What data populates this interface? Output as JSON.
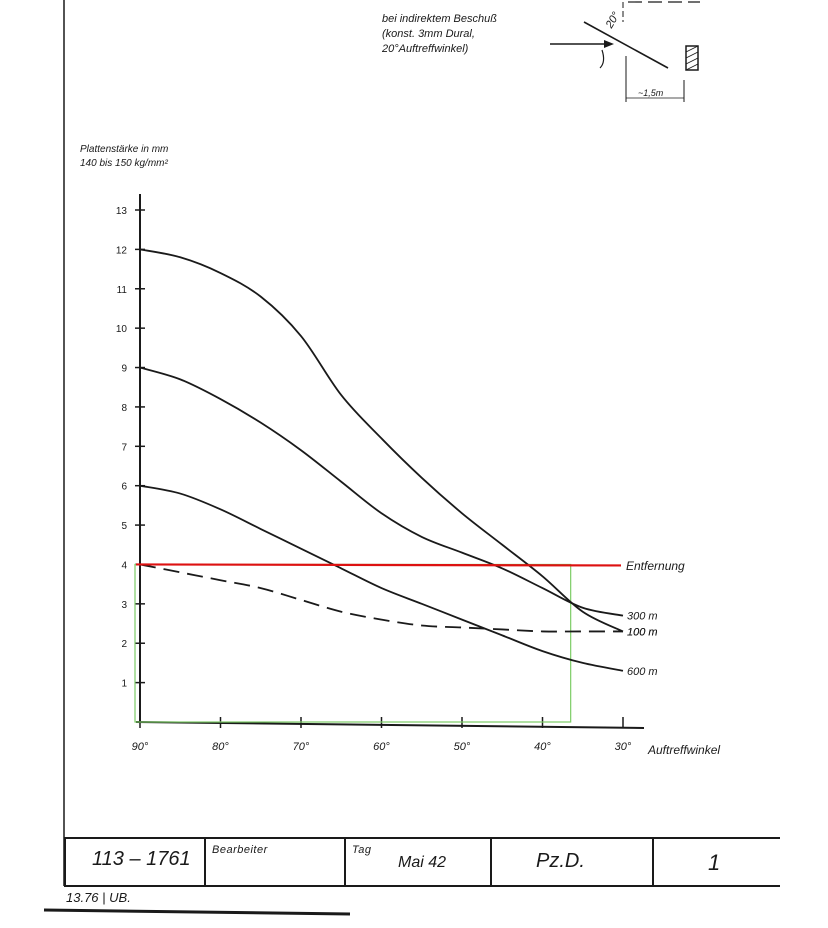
{
  "annotation": {
    "lines": [
      "bei indirektem Beschuß",
      "(konst. 3mm Dural,",
      "20°Auftreffwinkel)"
    ],
    "angle_label": "20°",
    "distance_label": "~1,5m"
  },
  "chart_data": {
    "type": "line",
    "title": "",
    "ylabel_lines": [
      "Plattenstärke in mm",
      "140 bis 150 kg/mm²"
    ],
    "xlabel": "Auftreffwinkel",
    "legend_header": "Entfernung",
    "x_ticks": [
      90,
      80,
      70,
      60,
      50,
      40,
      30
    ],
    "x_tick_labels": [
      "90°",
      "80°",
      "70°",
      "60°",
      "50°",
      "40°",
      "30°"
    ],
    "xlim": [
      90,
      30
    ],
    "y_ticks": [
      1,
      2,
      3,
      4,
      5,
      6,
      7,
      8,
      9,
      10,
      11,
      12,
      13
    ],
    "y_tick_labels": [
      "1",
      "2",
      "3",
      "4",
      "5",
      "6",
      "7",
      "8",
      "9",
      "10",
      "11",
      "12",
      "13"
    ],
    "ylim": [
      0,
      13
    ],
    "series": [
      {
        "name": "100 m",
        "dashed": false,
        "x": [
          90,
          85,
          80,
          75,
          70,
          65,
          60,
          55,
          50,
          45,
          40,
          35,
          30
        ],
        "y": [
          12.0,
          11.8,
          11.4,
          10.8,
          9.8,
          8.3,
          7.2,
          6.2,
          5.3,
          4.5,
          3.7,
          2.8,
          2.3
        ]
      },
      {
        "name": "300 m",
        "dashed": false,
        "x": [
          90,
          85,
          80,
          75,
          70,
          65,
          60,
          55,
          50,
          45,
          40,
          35,
          30
        ],
        "y": [
          9.0,
          8.7,
          8.2,
          7.6,
          6.9,
          6.1,
          5.3,
          4.7,
          4.3,
          3.9,
          3.4,
          2.9,
          2.7
        ]
      },
      {
        "name": "100 m",
        "dashed": true,
        "x": [
          90,
          85,
          80,
          75,
          70,
          65,
          60,
          55,
          50,
          45,
          40,
          35,
          30
        ],
        "y": [
          4.0,
          3.8,
          3.6,
          3.4,
          3.1,
          2.8,
          2.6,
          2.45,
          2.4,
          2.35,
          2.3,
          2.3,
          2.3
        ]
      },
      {
        "name": "600 m",
        "dashed": false,
        "x": [
          90,
          85,
          80,
          75,
          70,
          65,
          60,
          55,
          50,
          45,
          40,
          35,
          30
        ],
        "y": [
          6.0,
          5.8,
          5.4,
          4.9,
          4.4,
          3.9,
          3.4,
          3.0,
          2.6,
          2.2,
          1.8,
          1.5,
          1.3
        ]
      }
    ],
    "highlight_line_y": 4,
    "highlight_color": "#dd1111",
    "box_color": "#7ccc66"
  },
  "footer": {
    "drawing_number": "113 – 1761",
    "bearbeiter_label": "Bearbeiter",
    "tag_label": "Tag",
    "date": "Mai 42",
    "department": "Pz.D.",
    "sheet_number": "1",
    "bottom_note": "13.76 | UB."
  }
}
